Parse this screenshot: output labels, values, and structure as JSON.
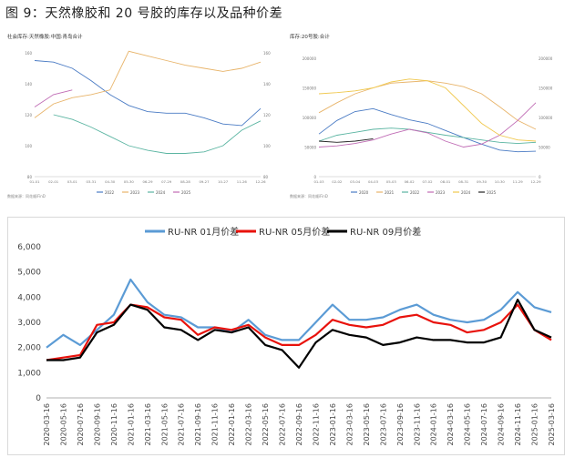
{
  "figure_title": "图 9：天然橡胶和 20 号胶的库存以及品种价差",
  "chart_data": [
    {
      "type": "line",
      "title": "社会库存:天然橡胶:中国:青岛合计",
      "xlabel": "",
      "ylabel": "",
      "x": [
        "01-01",
        "02-01",
        "03-01",
        "03-31",
        "04-30",
        "05-30",
        "06-29",
        "07-29",
        "08-28",
        "09-27",
        "10-27",
        "11-26",
        "12-26"
      ],
      "ylim": [
        80,
        160
      ],
      "yticks": [
        80,
        100,
        120,
        140,
        160
      ],
      "y2ticks": [
        80,
        100,
        120,
        140,
        160
      ],
      "grid": false,
      "legend": "bottom",
      "series": [
        {
          "name": "2022",
          "color": "#4a7bc4",
          "values": [
            155,
            154,
            150,
            142,
            133,
            126,
            122,
            121,
            121,
            118,
            114,
            113,
            124
          ]
        },
        {
          "name": "2023",
          "color": "#e8b46a",
          "values": [
            118,
            127,
            131,
            133,
            136,
            161,
            158,
            155,
            152,
            150,
            148,
            150,
            154
          ]
        },
        {
          "name": "2024",
          "color": "#5bb5a2",
          "values": [
            null,
            120,
            117,
            112,
            106,
            100,
            97,
            95,
            95,
            96,
            100,
            110,
            116
          ]
        },
        {
          "name": "2025",
          "color": "#c06cb5",
          "values": [
            125,
            133,
            136,
            null,
            null,
            null,
            null,
            null,
            null,
            null,
            null,
            null,
            null
          ]
        }
      ],
      "source": "数据来源：同花顺iFinD"
    },
    {
      "type": "line",
      "title": "库存:20号胶:合计",
      "xlabel": "",
      "ylabel": "",
      "x": [
        "01-03",
        "02-02",
        "03-04",
        "04-03",
        "05-03",
        "06-02",
        "07-02",
        "08-01",
        "08-31",
        "09-30",
        "10-30",
        "11-29",
        "12-29"
      ],
      "ylim": [
        0,
        200000
      ],
      "yticks": [
        0,
        50000,
        100000,
        150000,
        200000
      ],
      "y2ticks": [
        0,
        50000,
        100000,
        150000,
        200000
      ],
      "grid": false,
      "legend": "bottom",
      "series": [
        {
          "name": "2020",
          "color": "#4a7bc4",
          "values": [
            72000,
            95000,
            110000,
            115000,
            105000,
            96000,
            90000,
            78000,
            66000,
            55000,
            45000,
            42000,
            43000
          ]
        },
        {
          "name": "2021",
          "color": "#e8b46a",
          "values": [
            108000,
            125000,
            140000,
            150000,
            158000,
            160000,
            162000,
            158000,
            152000,
            140000,
            118000,
            95000,
            80000
          ]
        },
        {
          "name": "2022",
          "color": "#5bb5a2",
          "values": [
            60000,
            70000,
            75000,
            80000,
            82000,
            80000,
            75000,
            70000,
            66000,
            62000,
            58000,
            56000,
            58000
          ]
        },
        {
          "name": "2023",
          "color": "#c06cb5",
          "values": [
            50000,
            52000,
            56000,
            62000,
            72000,
            80000,
            74000,
            60000,
            50000,
            55000,
            70000,
            95000,
            125000
          ]
        },
        {
          "name": "2024",
          "color": "#f0c84e",
          "values": [
            140000,
            142000,
            145000,
            150000,
            160000,
            165000,
            162000,
            150000,
            120000,
            90000,
            70000,
            62000,
            60000
          ]
        },
        {
          "name": "2025",
          "color": "#222222",
          "values": [
            60000,
            58000,
            60000,
            64000,
            null,
            null,
            null,
            null,
            null,
            null,
            null,
            null,
            null
          ]
        }
      ],
      "source": "数据来源：同花顺iFinD"
    },
    {
      "type": "line",
      "title": "",
      "xlabel": "",
      "ylabel": "",
      "x": [
        "2020-03-16",
        "2020-05-16",
        "2020-07-16",
        "2020-09-16",
        "2020-11-16",
        "2021-01-16",
        "2021-03-16",
        "2021-05-16",
        "2021-07-16",
        "2021-09-16",
        "2021-11-16",
        "2022-01-16",
        "2022-03-16",
        "2022-05-16",
        "2022-07-16",
        "2022-09-16",
        "2022-11-16",
        "2023-01-16",
        "2023-03-16",
        "2023-05-16",
        "2023-07-16",
        "2023-09-16",
        "2023-11-16",
        "2024-01-16",
        "2024-03-16",
        "2024-05-16",
        "2024-07-16",
        "2024-09-16",
        "2024-11-16",
        "2025-01-16",
        "2025-03-16"
      ],
      "ylim": [
        0,
        6000
      ],
      "yticks": [
        "0",
        "1,000",
        "2,000",
        "3,000",
        "4,000",
        "5,000",
        "6,000"
      ],
      "grid": false,
      "legend": "top",
      "series": [
        {
          "name": "RU-NR 01月价差",
          "color": "#5b9bd5",
          "values": [
            2000,
            2500,
            2100,
            2700,
            3300,
            4700,
            3800,
            3300,
            3200,
            2800,
            2800,
            2600,
            3100,
            2500,
            2300,
            2300,
            3000,
            3700,
            3100,
            3100,
            3200,
            3500,
            3700,
            3300,
            3100,
            3000,
            3100,
            3500,
            4200,
            3600,
            3400
          ]
        },
        {
          "name": "RU-NR 05月价差",
          "color": "#e8120c",
          "values": [
            1500,
            1600,
            1700,
            2900,
            3000,
            3700,
            3600,
            3200,
            3100,
            2500,
            2800,
            2700,
            2900,
            2400,
            2100,
            2100,
            2500,
            3100,
            2900,
            2800,
            2900,
            3200,
            3300,
            3000,
            2900,
            2600,
            2700,
            3000,
            3700,
            2700,
            2300
          ]
        },
        {
          "name": "RU-NR 09月价差",
          "color": "#000000",
          "values": [
            1500,
            1500,
            1600,
            2600,
            2900,
            3700,
            3500,
            2800,
            2700,
            2300,
            2700,
            2600,
            2800,
            2100,
            1900,
            1200,
            2200,
            2700,
            2500,
            2400,
            2100,
            2200,
            2400,
            2300,
            2300,
            2200,
            2200,
            2400,
            3900,
            2700,
            2400
          ]
        }
      ]
    }
  ]
}
